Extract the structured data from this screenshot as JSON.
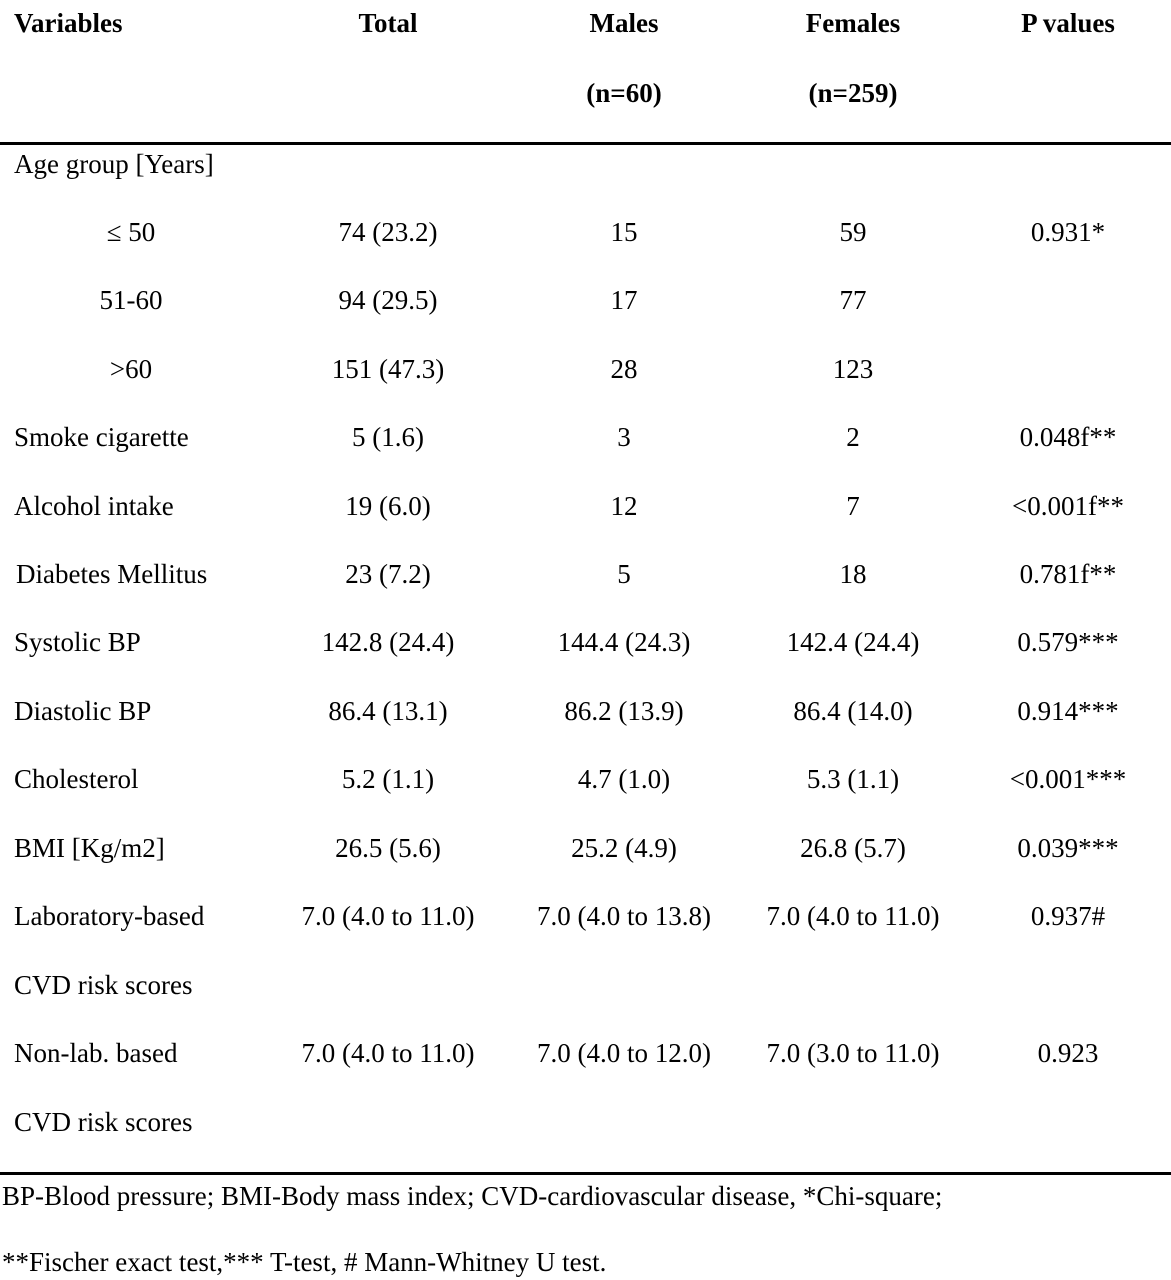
{
  "header": {
    "variables": "Variables",
    "total": "Total",
    "males": "Males",
    "males_n": "(n=60)",
    "females": "Females",
    "females_n": "(n=259)",
    "p_values": "P values"
  },
  "group_label": "Age group [Years]",
  "rows": [
    {
      "variable": "≤ 50",
      "total": "74 (23.2)",
      "males": "15",
      "females": "59",
      "p": "0.931*"
    },
    {
      "variable": "51-60",
      "total": "94 (29.5)",
      "males": "17",
      "females": "77",
      "p": ""
    },
    {
      "variable": ">60",
      "total": "151 (47.3)",
      "males": "28",
      "females": "123",
      "p": ""
    },
    {
      "variable": "Smoke cigarette",
      "total": "5 (1.6)",
      "males": "3",
      "females": "2",
      "p": "0.048f**"
    },
    {
      "variable": "Alcohol intake",
      "total": "19 (6.0)",
      "males": "12",
      "females": "7",
      "p": "<0.001f**"
    },
    {
      "variable": "Diabetes Mellitus",
      "total": "23 (7.2)",
      "males": "5",
      "females": "18",
      "p": "0.781f**"
    },
    {
      "variable": "Systolic BP",
      "total": "142.8 (24.4)",
      "males": "144.4 (24.3)",
      "females": "142.4 (24.4)",
      "p": "0.579***"
    },
    {
      "variable": "Diastolic BP",
      "total": "86.4 (13.1)",
      "males": "86.2 (13.9)",
      "females": "86.4 (14.0)",
      "p": "0.914***"
    },
    {
      "variable": "Cholesterol",
      "total": "5.2 (1.1)",
      "males": "4.7 (1.0)",
      "females": "5.3 (1.1)",
      "p": "<0.001***"
    },
    {
      "variable": "BMI [Kg/m2]",
      "total": "26.5 (5.6)",
      "males": "25.2 (4.9)",
      "females": "26.8 (5.7)",
      "p": "0.039***"
    },
    {
      "variable": "Laboratory-based",
      "variable_line2": "CVD risk scores",
      "total": "7.0 (4.0 to 11.0)",
      "males": "7.0 (4.0 to 13.8)",
      "females": "7.0 (4.0 to 11.0)",
      "p": "0.937#"
    },
    {
      "variable": "Non-lab. based",
      "variable_line2": "CVD risk scores",
      "total": "7.0 (4.0 to 11.0)",
      "males": "7.0 (4.0 to 12.0)",
      "females": "7.0 (3.0 to 11.0)",
      "p": "0.923"
    }
  ],
  "footnote": {
    "line1": "BP-Blood pressure; BMI-Body mass index; CVD-cardiovascular disease, *Chi-square;",
    "line2": "**Fischer exact test,*** T-test, # Mann-Whitney U test."
  }
}
